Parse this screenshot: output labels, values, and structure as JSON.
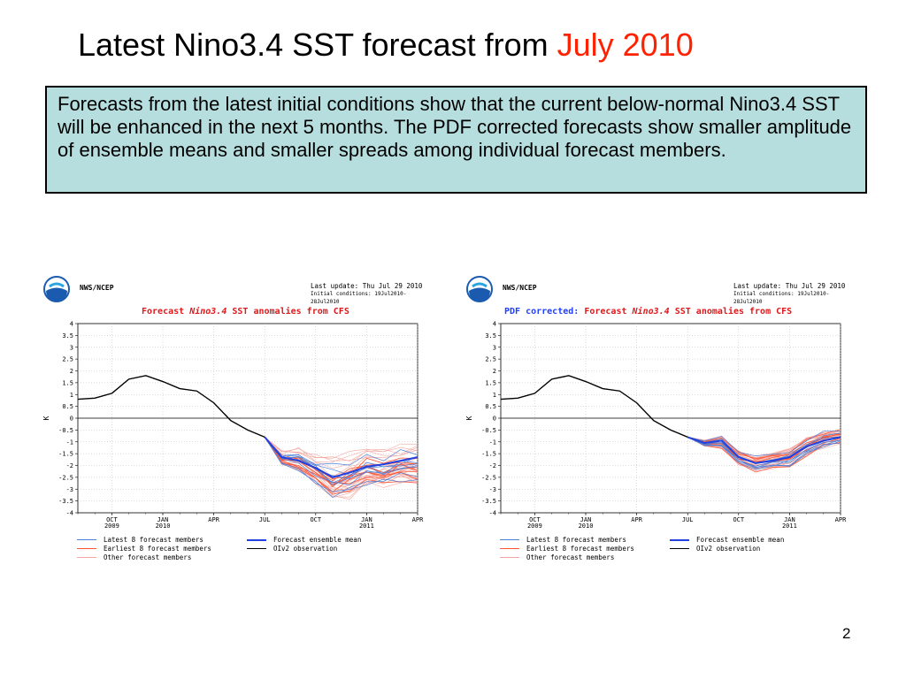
{
  "slide": {
    "title_prefix": "Latest Nino3.4 SST forecast from",
    "title_accent": "July 2010",
    "description": "Forecasts from the latest initial conditions show that the current below-normal Nino3.4 SST will be enhanced in the next 5 months. The PDF corrected forecasts show smaller amplitude of ensemble means and smaller spreads among individual forecast members.",
    "page_number": "2"
  },
  "colors": {
    "accent": "#ff2200",
    "box_background": "#b7dede",
    "latest8": "#4a7fd9",
    "earliest8": "#ff5533",
    "other": "#f3a7a0",
    "ensemble_mean": "#2040e0",
    "observation": "#000000"
  },
  "panels": {
    "left": {
      "agency": "NWS/NCEP",
      "last_update": "Last update: Thu Jul 29 2010",
      "initial_conditions": "Initial conditions: 19Jul2010-28Jul2010",
      "title_prefix": "",
      "title_main": "Forecast",
      "title_var": "Nino3.4",
      "title_rest": "SST anomalies from CFS"
    },
    "right": {
      "agency": "NWS/NCEP",
      "last_update": "Last update: Thu Jul 29 2010",
      "initial_conditions": "Initial conditions: 19Jul2010-28Jul2010",
      "title_prefix": "PDF corrected:",
      "title_main": "Forecast",
      "title_var": "Nino3.4",
      "title_rest": "SST anomalies from CFS"
    }
  },
  "legend": {
    "latest8": "Latest 8 forecast members",
    "earliest8": "Earliest 8 forecast members",
    "other": "Other forecast members",
    "mean": "Forecast ensemble mean",
    "obs": "OIv2 observation"
  },
  "chart_data": [
    {
      "type": "line",
      "title": "Forecast Nino3.4 SST anomalies from CFS",
      "ylabel": "K",
      "ylim": [
        -4,
        4
      ],
      "yticks": [
        "4",
        "3.5",
        "3",
        "2.5",
        "2",
        "1.5",
        "1",
        "0.5",
        "0",
        "-0.5",
        "-1",
        "-1.5",
        "-2",
        "-2.5",
        "-3",
        "-3.5",
        "-4"
      ],
      "xticks": [
        "OCT 2009",
        "JAN 2010",
        "APR",
        "JUL",
        "OCT",
        "JAN 2011",
        "APR"
      ],
      "grid": true,
      "observation": {
        "name": "OIv2 observation",
        "x": [
          "Aug 2009",
          "Sep 2009",
          "Oct 2009",
          "Nov 2009",
          "Dec 2009",
          "Jan 2010",
          "Feb 2010",
          "Mar 2010",
          "Apr 2010",
          "May 2010",
          "Jun 2010",
          "Jul 2010"
        ],
        "values": [
          0.8,
          0.85,
          1.05,
          1.65,
          1.8,
          1.55,
          1.25,
          1.15,
          0.65,
          -0.1,
          -0.5,
          -0.8
        ]
      },
      "ensemble_mean": {
        "name": "Forecast ensemble mean",
        "x": [
          "Jul 2010",
          "Aug 2010",
          "Sep 2010",
          "Oct 2010",
          "Nov 2010",
          "Dec 2010",
          "Jan 2011",
          "Feb 2011",
          "Mar 2011",
          "Apr 2011"
        ],
        "values": [
          -0.8,
          -1.65,
          -1.8,
          -2.1,
          -2.5,
          -2.3,
          -2.05,
          -1.95,
          -1.8,
          -1.65
        ]
      },
      "member_spread": {
        "min": [
          -0.8,
          -2.0,
          -2.3,
          -2.9,
          -3.6,
          -3.5,
          -3.0,
          -3.0,
          -2.8,
          -2.9
        ],
        "max": [
          -0.8,
          -1.3,
          -1.1,
          -1.3,
          -1.4,
          -1.1,
          -0.9,
          -1.0,
          -0.9,
          -0.8
        ]
      }
    },
    {
      "type": "line",
      "title": "PDF corrected: Forecast Nino3.4 SST anomalies from CFS",
      "ylabel": "K",
      "ylim": [
        -4,
        4
      ],
      "yticks": [
        "4",
        "3.5",
        "3",
        "2.5",
        "2",
        "1.5",
        "1",
        "0.5",
        "0",
        "-0.5",
        "-1",
        "-1.5",
        "-2",
        "-2.5",
        "-3",
        "-3.5",
        "-4"
      ],
      "xticks": [
        "OCT 2009",
        "JAN 2010",
        "APR",
        "JUL",
        "OCT",
        "JAN 2011",
        "APR"
      ],
      "grid": true,
      "observation": {
        "name": "OIv2 observation",
        "x": [
          "Aug 2009",
          "Sep 2009",
          "Oct 2009",
          "Nov 2009",
          "Dec 2009",
          "Jan 2010",
          "Feb 2010",
          "Mar 2010",
          "Apr 2010",
          "May 2010",
          "Jun 2010",
          "Jul 2010"
        ],
        "values": [
          0.8,
          0.85,
          1.05,
          1.65,
          1.8,
          1.55,
          1.25,
          1.15,
          0.65,
          -0.1,
          -0.5,
          -0.8
        ]
      },
      "ensemble_mean": {
        "name": "Forecast ensemble mean",
        "x": [
          "Jul 2010",
          "Aug 2010",
          "Sep 2010",
          "Oct 2010",
          "Nov 2010",
          "Dec 2010",
          "Jan 2011",
          "Feb 2011",
          "Mar 2011",
          "Apr 2011"
        ],
        "values": [
          -0.8,
          -1.05,
          -0.95,
          -1.65,
          -1.9,
          -1.8,
          -1.65,
          -1.2,
          -0.95,
          -0.8
        ]
      },
      "member_spread": {
        "min": [
          -0.8,
          -1.2,
          -1.3,
          -2.0,
          -2.3,
          -2.2,
          -2.1,
          -1.7,
          -1.3,
          -1.1
        ],
        "max": [
          -0.8,
          -0.9,
          -0.7,
          -1.3,
          -1.5,
          -1.4,
          -1.2,
          -0.7,
          -0.5,
          -0.4
        ]
      }
    }
  ]
}
